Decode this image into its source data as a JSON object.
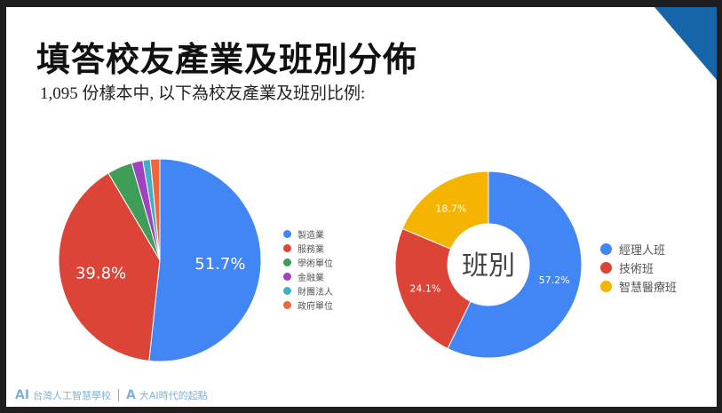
{
  "title": "填答校友產業及班別分佈",
  "subtitle": "1,095 份樣本中, 以下為校友產業及班別比例:",
  "footer": {
    "logo1": "AI",
    "school": "台灣人工智慧學校",
    "logo2": "A",
    "slogan": "大AI時代的起點"
  },
  "chart_data": [
    {
      "type": "pie",
      "categories": [
        "製造業",
        "服務業",
        "學術單位",
        "金融業",
        "財團法人",
        "政府單位"
      ],
      "values": [
        51.7,
        39.8,
        4.0,
        1.8,
        1.2,
        1.5
      ],
      "data_labels": [
        "51.7%",
        "39.8%",
        "",
        "",
        "",
        ""
      ],
      "colors": [
        "#4285f4",
        "#db4437",
        "#3e9d57",
        "#a142c0",
        "#3fb0c6",
        "#f0663a"
      ],
      "legend": "right"
    },
    {
      "type": "pie",
      "donut": true,
      "center_label": "班別",
      "categories": [
        "經理人班",
        "技術班",
        "智慧醫療班"
      ],
      "values": [
        57.2,
        24.1,
        18.7
      ],
      "data_labels": [
        "57.2%",
        "24.1%",
        "18.7%"
      ],
      "colors": [
        "#4285f4",
        "#db4437",
        "#f4b400"
      ],
      "legend": "right"
    }
  ]
}
